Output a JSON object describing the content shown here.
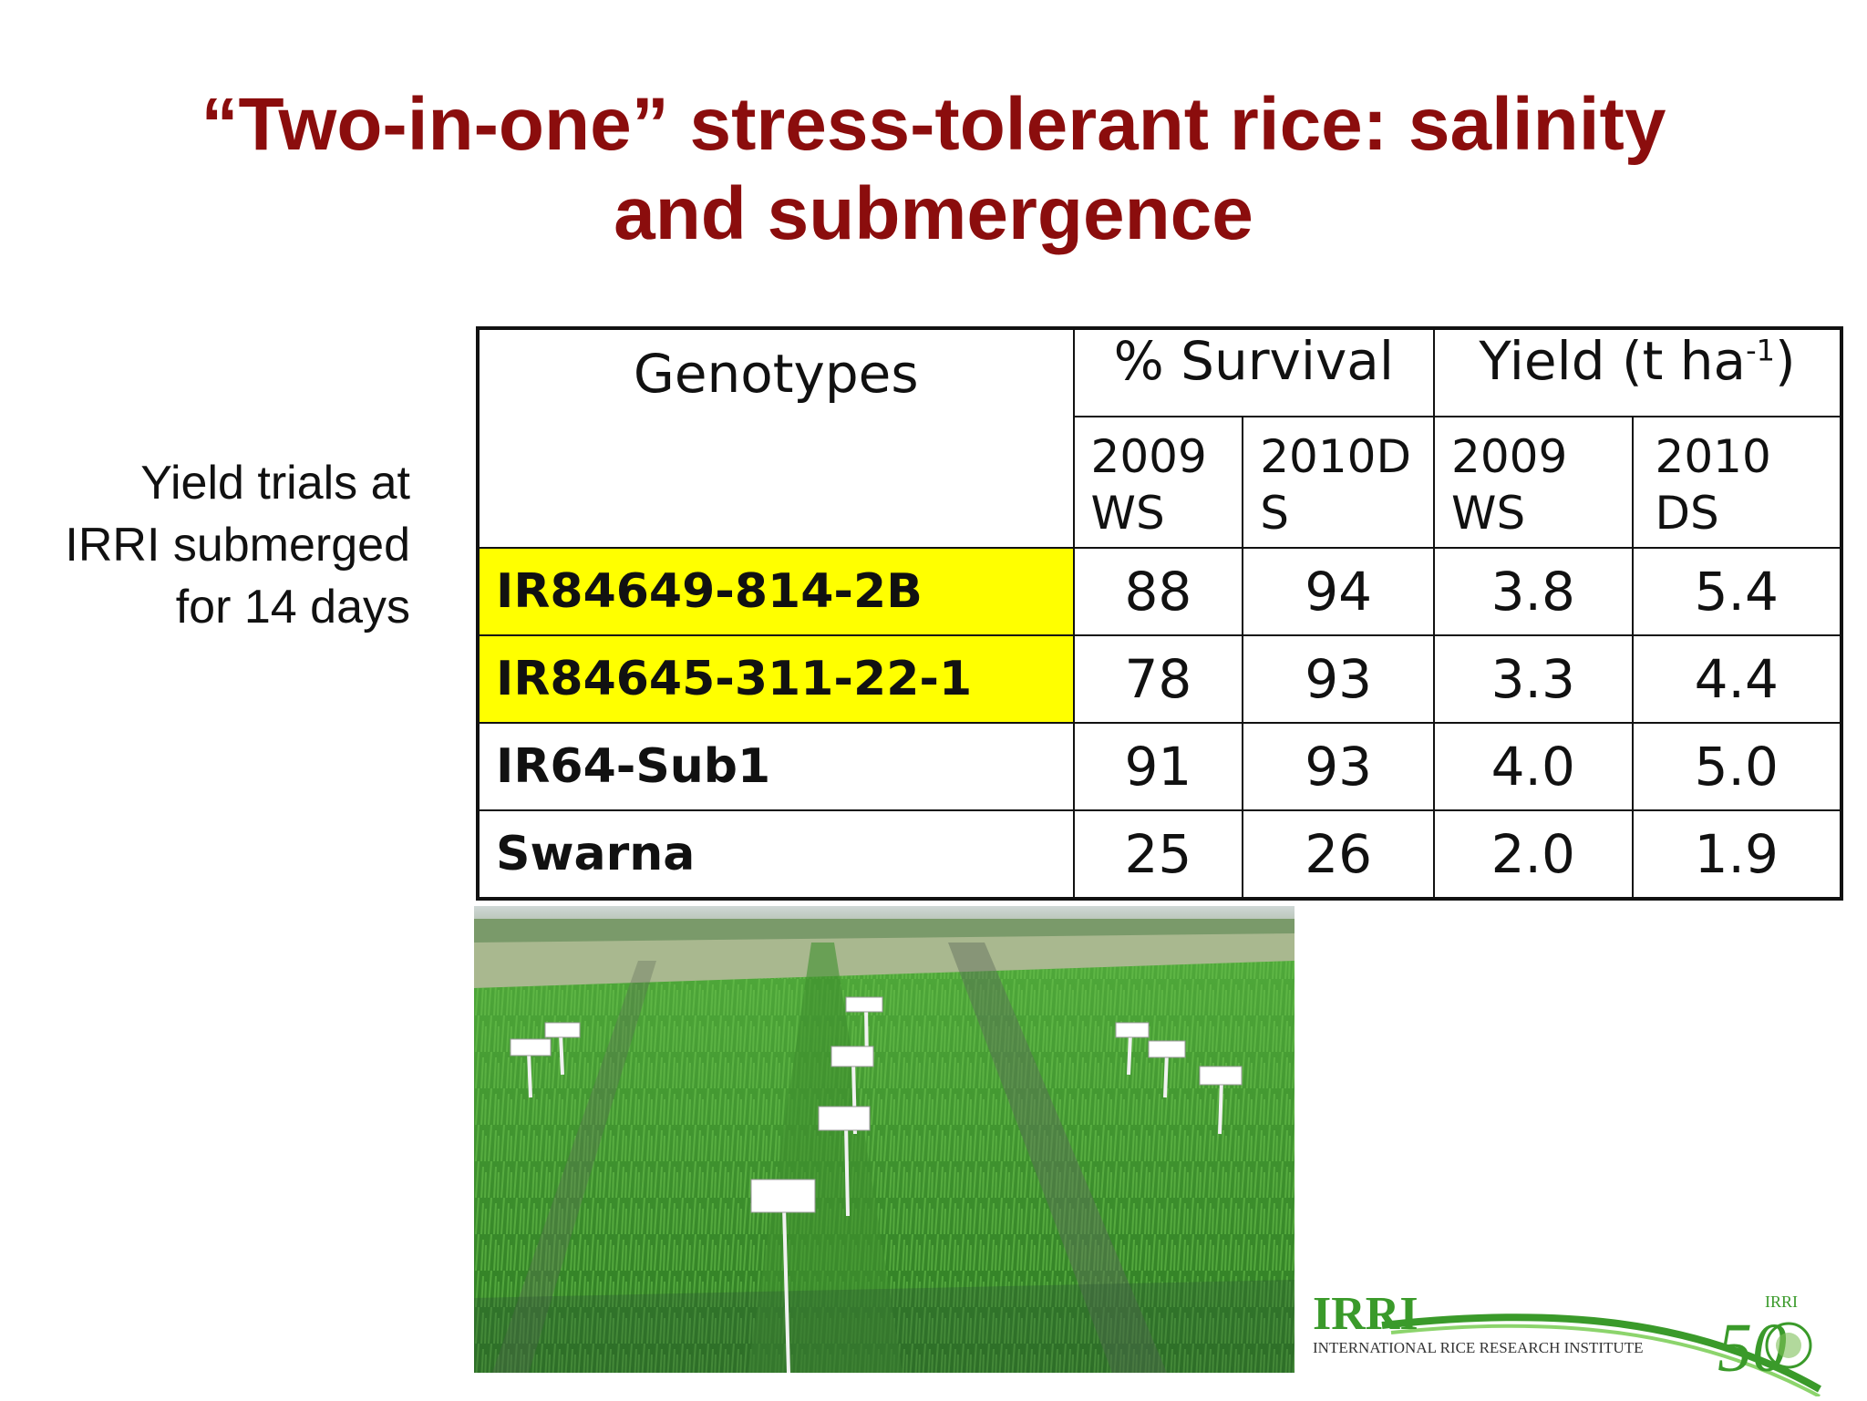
{
  "slide": {
    "title_line1": "“Two-in-one” stress-tolerant rice: salinity",
    "title_line2": "and submergence",
    "side_note": [
      "Yield trials at",
      "IRRI submerged",
      "for 14 days"
    ]
  },
  "table": {
    "headers": {
      "genotypes": "Genotypes",
      "survival": "% Survival",
      "yield_prefix": "Yield (t ha",
      "yield_sup": "-1",
      "yield_suffix": ")",
      "sub": [
        [
          "2009",
          "WS"
        ],
        [
          "2010D",
          "S"
        ],
        [
          "2009",
          "WS"
        ],
        [
          "2010",
          "DS"
        ]
      ]
    },
    "rows": [
      {
        "genotype": "IR84649-814-2B",
        "highlight": true,
        "values": [
          "88",
          "94",
          "3.8",
          "5.4"
        ]
      },
      {
        "genotype": "IR84645-311-22-1",
        "highlight": true,
        "values": [
          "78",
          "93",
          "3.3",
          "4.4"
        ]
      },
      {
        "genotype": "IR64-Sub1",
        "highlight": false,
        "values": [
          "91",
          "93",
          "4.0",
          "5.0"
        ]
      },
      {
        "genotype": "Swarna",
        "highlight": false,
        "values": [
          "25",
          "26",
          "2.0",
          "1.9"
        ]
      }
    ],
    "highlight_color": "#ffff00"
  },
  "logo": {
    "name": "IRRI",
    "subtitle": "INTERNATIONAL RICE RESEARCH INSTITUTE",
    "anniversary": "50",
    "anniversary_label": "IRRI",
    "color_green": "#3a9a2a"
  },
  "colors": {
    "title": "#8b0d0d"
  }
}
